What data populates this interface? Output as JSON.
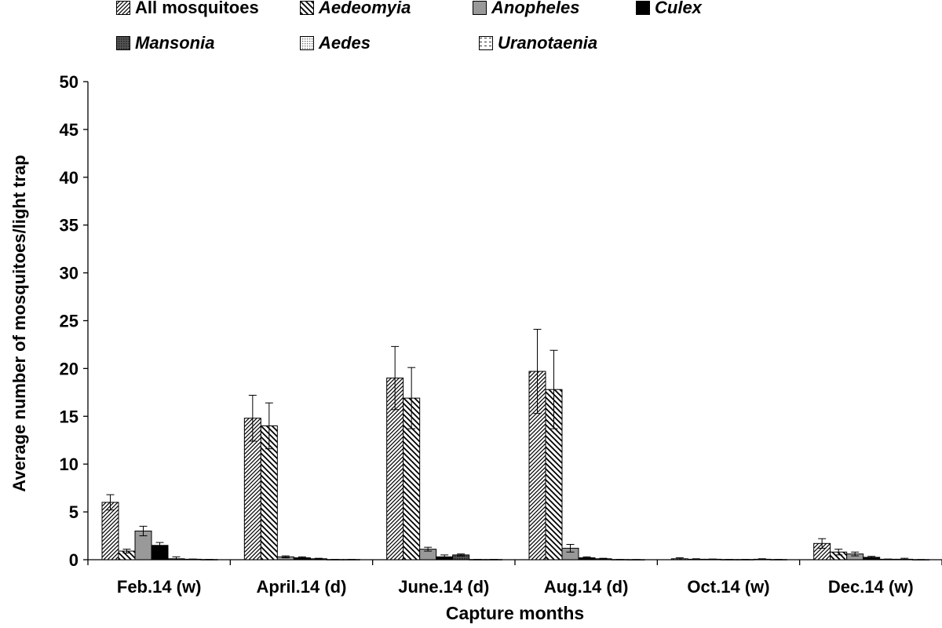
{
  "chart_data": {
    "type": "bar",
    "xlabel": "Capture months",
    "ylabel": "Average number of mosquitoes/light  trap",
    "ylim": [
      0,
      50
    ],
    "yticks": [
      0,
      5,
      10,
      15,
      20,
      25,
      30,
      35,
      40,
      45,
      50
    ],
    "grid": false,
    "legend_position": "top",
    "categories": [
      "Feb.14 (w)",
      "April.14 (d)",
      "June.14 (d)",
      "Aug.14 (d)",
      "Oct.14 (w)",
      "Dec.14 (w)"
    ],
    "series": [
      {
        "name": "All mosquitoes",
        "pattern": "diag-fwd",
        "values": [
          6.0,
          14.8,
          19.0,
          19.7,
          0.1,
          1.7
        ],
        "errors": [
          0.8,
          2.4,
          3.3,
          4.4,
          0.1,
          0.5
        ]
      },
      {
        "name": "Aedeomyia",
        "pattern": "diag-back",
        "values": [
          0.9,
          14.0,
          16.9,
          17.8,
          0.05,
          0.8
        ],
        "errors": [
          0.2,
          2.4,
          3.2,
          4.1,
          0.05,
          0.3
        ]
      },
      {
        "name": "Anopheles",
        "pattern": "gray",
        "values": [
          3.0,
          0.3,
          1.1,
          1.2,
          0.05,
          0.6
        ],
        "errors": [
          0.5,
          0.1,
          0.2,
          0.4,
          0.02,
          0.2
        ]
      },
      {
        "name": "Culex",
        "pattern": "black",
        "values": [
          1.5,
          0.2,
          0.3,
          0.2,
          0.02,
          0.25
        ],
        "errors": [
          0.3,
          0.1,
          0.2,
          0.1,
          0.01,
          0.1
        ]
      },
      {
        "name": "Mansonia",
        "pattern": "dark-dots",
        "values": [
          0.1,
          0.1,
          0.5,
          0.1,
          0.02,
          0.05
        ],
        "errors": [
          0.2,
          0.05,
          0.1,
          0.05,
          0.01,
          0.02
        ]
      },
      {
        "name": "Aedes",
        "pattern": "light-dots",
        "values": [
          0.05,
          0.02,
          0.02,
          0.02,
          0.05,
          0.05
        ],
        "errors": [
          0.02,
          0.01,
          0.01,
          0.01,
          0.05,
          0.1
        ]
      },
      {
        "name": "Uranotaenia",
        "pattern": "dashes",
        "values": [
          0.02,
          0.02,
          0.02,
          0.01,
          0.02,
          0.01
        ],
        "errors": [
          0.01,
          0.01,
          0.01,
          0.01,
          0.01,
          0.01
        ]
      }
    ]
  }
}
